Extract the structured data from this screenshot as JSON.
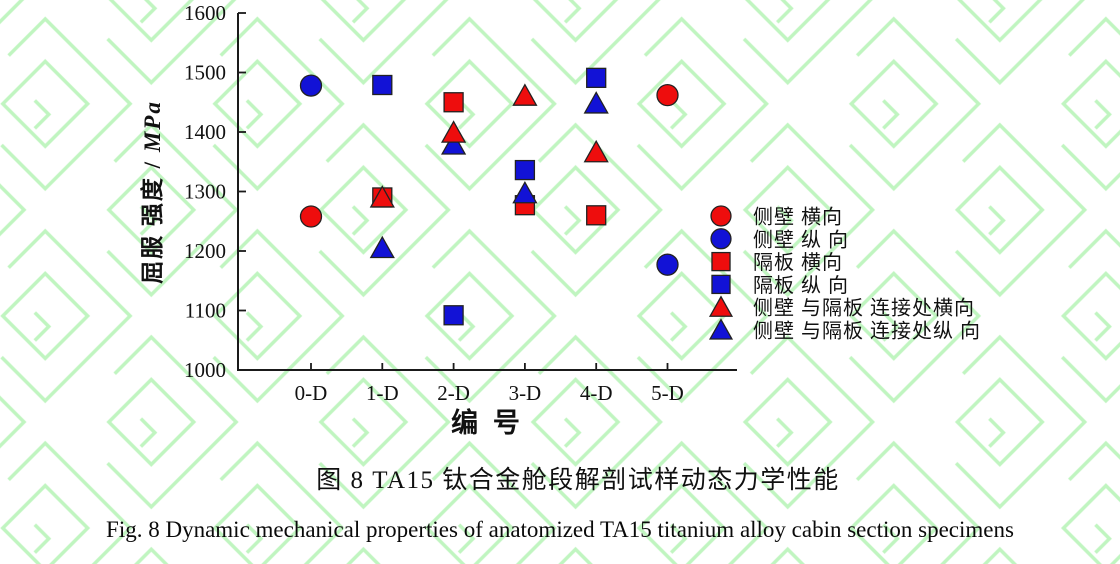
{
  "figure": {
    "watermark_color": "#8dec8d"
  },
  "captions": {
    "chinese": "图 8  TA15 钛合金舱段解剖试样动态力学性能",
    "english": "Fig. 8 Dynamic mechanical properties of anatomized TA15 titanium alloy cabin section specimens"
  },
  "chart_data": {
    "type": "scatter",
    "title": "",
    "xlabel": "编 号",
    "ylabel_cn": "屈服 强度",
    "ylabel_unit": "MPa",
    "categories": [
      "0-D",
      "1-D",
      "2-D",
      "3-D",
      "4-D",
      "5-D"
    ],
    "ylim": [
      1000,
      1600
    ],
    "yticks": [
      1600,
      1500,
      1400,
      1300,
      1200,
      1100,
      1000
    ],
    "grid": false,
    "legend_position": "right-middle",
    "series": [
      {
        "name": "侧壁 横向",
        "marker": "circle",
        "color": "#ee0d0d",
        "values": [
          1258,
          null,
          null,
          null,
          null,
          1462
        ]
      },
      {
        "name": "侧壁 纵 向",
        "marker": "circle",
        "color": "#1212d6",
        "values": [
          1478,
          null,
          null,
          null,
          null,
          1177
        ]
      },
      {
        "name": "隔板 横向",
        "marker": "square",
        "color": "#ee0d0d",
        "values": [
          null,
          1290,
          1450,
          1277,
          1260,
          null
        ]
      },
      {
        "name": "隔板 纵 向",
        "marker": "square",
        "color": "#1212d6",
        "values": [
          null,
          1479,
          1092,
          1336,
          1491,
          null
        ]
      },
      {
        "name": "侧壁 与隔板 连接处横向",
        "marker": "triangle",
        "color": "#ee0d0d",
        "values": [
          null,
          1290,
          1399,
          1461,
          1366,
          null
        ]
      },
      {
        "name": "侧壁 与隔板 连接处纵 向",
        "marker": "triangle",
        "color": "#1212d6",
        "values": [
          null,
          1205,
          1379,
          1297,
          1448,
          null
        ]
      }
    ]
  }
}
